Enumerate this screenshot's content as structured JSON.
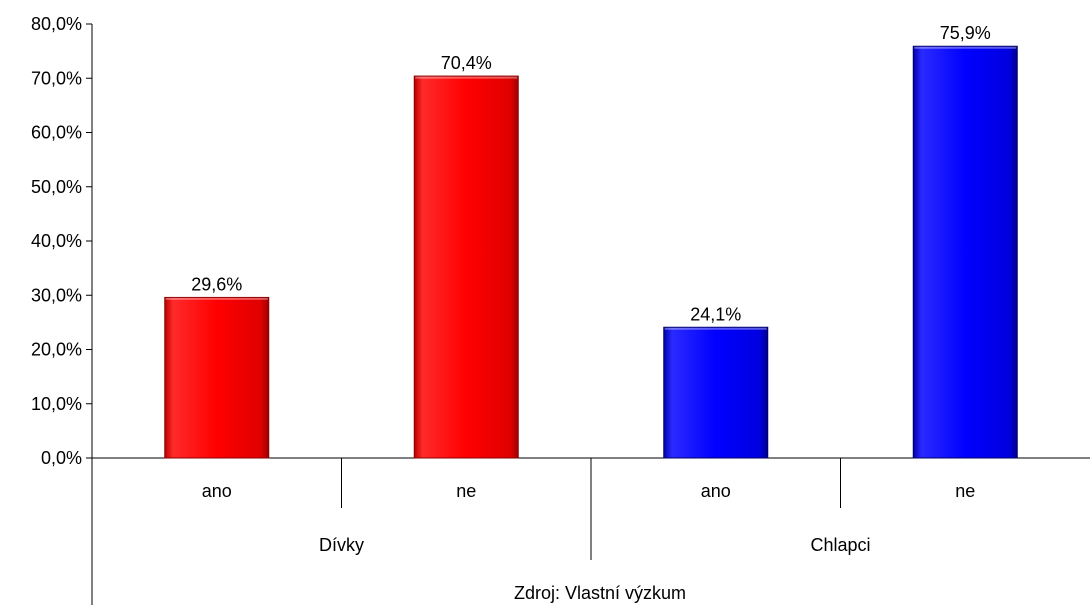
{
  "chart_data": {
    "type": "bar",
    "groups": [
      {
        "label": "Dívky",
        "bars": [
          {
            "category": "ano",
            "value": 29.6,
            "label": "29,6%"
          },
          {
            "category": "ne",
            "value": 70.4,
            "label": "70,4%"
          }
        ],
        "color": "#ff0000"
      },
      {
        "label": "Chlapci",
        "bars": [
          {
            "category": "ano",
            "value": 24.1,
            "label": "24,1%"
          },
          {
            "category": "ne",
            "value": 75.9,
            "label": "75,9%"
          }
        ],
        "color": "#0000ff"
      }
    ],
    "ylim": [
      0,
      80
    ],
    "yticks": [
      {
        "value": 0,
        "label": "0,0%"
      },
      {
        "value": 10,
        "label": "10,0%"
      },
      {
        "value": 20,
        "label": "20,0%"
      },
      {
        "value": 30,
        "label": "30,0%"
      },
      {
        "value": 40,
        "label": "40,0%"
      },
      {
        "value": 50,
        "label": "50,0%"
      },
      {
        "value": 60,
        "label": "60,0%"
      },
      {
        "value": 70,
        "label": "70,0%"
      },
      {
        "value": 80,
        "label": "80,0%"
      }
    ],
    "grid": false,
    "legend": "none",
    "footnote": "Zdroj: Vlastní výzkum"
  }
}
